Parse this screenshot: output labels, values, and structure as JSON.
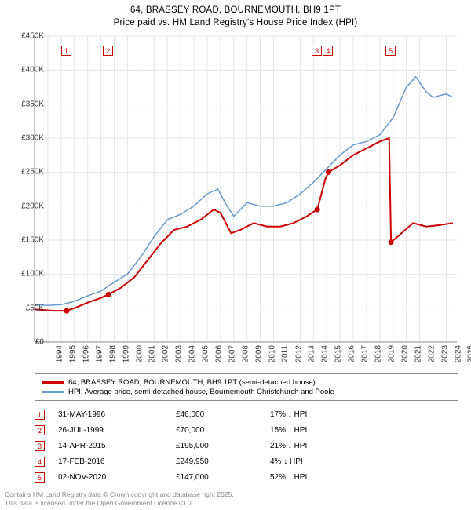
{
  "title_line1": "64, BRASSEY ROAD, BOURNEMOUTH, BH9 1PT",
  "title_line2": "Price paid vs. HM Land Registry's House Price Index (HPI)",
  "colors": {
    "series_price": "#cc0000",
    "series_hpi": "#6699cc",
    "grid": "#e5e5e5",
    "axis": "#888888",
    "marker_border": "#cc0000",
    "background": "#ffffff",
    "text": "#333333",
    "footer_text": "#888888"
  },
  "chart": {
    "type": "line",
    "x_start": 1994,
    "x_end": 2025.8,
    "x_ticks": [
      1994,
      1995,
      1996,
      1997,
      1998,
      1999,
      2000,
      2001,
      2002,
      2003,
      2004,
      2005,
      2006,
      2007,
      2008,
      2009,
      2010,
      2011,
      2012,
      2013,
      2014,
      2015,
      2016,
      2017,
      2018,
      2019,
      2020,
      2021,
      2022,
      2023,
      2024,
      2025
    ],
    "y_min": 0,
    "y_max": 450000,
    "y_ticks": [
      0,
      50000,
      100000,
      150000,
      200000,
      250000,
      300000,
      350000,
      400000,
      450000
    ],
    "y_tick_labels": [
      "£0",
      "£50K",
      "£100K",
      "£150K",
      "£200K",
      "£250K",
      "£300K",
      "£350K",
      "£400K",
      "£450K"
    ],
    "red_series": [
      [
        1994.0,
        48000
      ],
      [
        1995.5,
        46000
      ],
      [
        1996.42,
        46000
      ],
      [
        1997.0,
        50000
      ],
      [
        1998.0,
        58000
      ],
      [
        1999.0,
        65000
      ],
      [
        1999.57,
        70000
      ],
      [
        2000.5,
        80000
      ],
      [
        2001.5,
        95000
      ],
      [
        2002.5,
        120000
      ],
      [
        2003.5,
        145000
      ],
      [
        2004.5,
        165000
      ],
      [
        2005.5,
        170000
      ],
      [
        2006.5,
        180000
      ],
      [
        2007.5,
        195000
      ],
      [
        2008.0,
        190000
      ],
      [
        2008.8,
        160000
      ],
      [
        2009.5,
        165000
      ],
      [
        2010.5,
        175000
      ],
      [
        2011.5,
        170000
      ],
      [
        2012.5,
        170000
      ],
      [
        2013.5,
        175000
      ],
      [
        2014.5,
        185000
      ],
      [
        2015.29,
        195000
      ],
      [
        2015.9,
        240000
      ],
      [
        2016.13,
        249950
      ],
      [
        2017.0,
        260000
      ],
      [
        2018.0,
        275000
      ],
      [
        2019.0,
        285000
      ],
      [
        2020.0,
        295000
      ],
      [
        2020.7,
        300000
      ],
      [
        2020.84,
        147000
      ],
      [
        2021.5,
        158000
      ],
      [
        2022.5,
        175000
      ],
      [
        2023.5,
        170000
      ],
      [
        2024.5,
        172000
      ],
      [
        2025.5,
        175000
      ]
    ],
    "blue_series": [
      [
        1994.0,
        55000
      ],
      [
        1995.0,
        54000
      ],
      [
        1996.0,
        55000
      ],
      [
        1997.0,
        60000
      ],
      [
        1998.0,
        68000
      ],
      [
        1999.0,
        75000
      ],
      [
        2000.0,
        88000
      ],
      [
        2001.0,
        100000
      ],
      [
        2002.0,
        125000
      ],
      [
        2003.0,
        155000
      ],
      [
        2004.0,
        180000
      ],
      [
        2005.0,
        188000
      ],
      [
        2006.0,
        200000
      ],
      [
        2007.0,
        218000
      ],
      [
        2007.8,
        225000
      ],
      [
        2008.5,
        200000
      ],
      [
        2009.0,
        185000
      ],
      [
        2010.0,
        205000
      ],
      [
        2011.0,
        200000
      ],
      [
        2012.0,
        200000
      ],
      [
        2013.0,
        205000
      ],
      [
        2014.0,
        218000
      ],
      [
        2015.0,
        235000
      ],
      [
        2016.0,
        255000
      ],
      [
        2017.0,
        275000
      ],
      [
        2018.0,
        290000
      ],
      [
        2019.0,
        295000
      ],
      [
        2020.0,
        305000
      ],
      [
        2021.0,
        330000
      ],
      [
        2022.0,
        375000
      ],
      [
        2022.7,
        390000
      ],
      [
        2023.5,
        368000
      ],
      [
        2024.0,
        360000
      ],
      [
        2025.0,
        365000
      ],
      [
        2025.5,
        360000
      ]
    ],
    "markers": [
      {
        "n": "1",
        "year": 1996.42,
        "value": 46000,
        "box_y_offset": -72
      },
      {
        "n": "2",
        "year": 1999.57,
        "value": 70000,
        "box_y_offset": -72
      },
      {
        "n": "3",
        "year": 2015.29,
        "value": 195000,
        "box_y_offset": -72
      },
      {
        "n": "4",
        "year": 2016.13,
        "value": 249950,
        "box_y_offset": -72
      },
      {
        "n": "5",
        "year": 2020.84,
        "value": 147000,
        "box_y_offset": -72
      }
    ]
  },
  "legend": {
    "row1_label": "64, BRASSEY ROAD, BOURNEMOUTH, BH9 1PT (semi-detached house)",
    "row2_label": "HPI: Average price, semi-detached house, Bournemouth Christchurch and Poole"
  },
  "table": [
    {
      "n": "1",
      "date": "31-MAY-1996",
      "price": "£46,000",
      "pct": "17% ↓ HPI"
    },
    {
      "n": "2",
      "date": "26-JUL-1999",
      "price": "£70,000",
      "pct": "15% ↓ HPI"
    },
    {
      "n": "3",
      "date": "14-APR-2015",
      "price": "£195,000",
      "pct": "21% ↓ HPI"
    },
    {
      "n": "4",
      "date": "17-FEB-2016",
      "price": "£249,950",
      "pct": "4% ↓ HPI"
    },
    {
      "n": "5",
      "date": "02-NOV-2020",
      "price": "£147,000",
      "pct": "52% ↓ HPI"
    }
  ],
  "footer_line1": "Contains HM Land Registry data © Crown copyright and database right 2025.",
  "footer_line2": "This data is licensed under the Open Government Licence v3.0."
}
